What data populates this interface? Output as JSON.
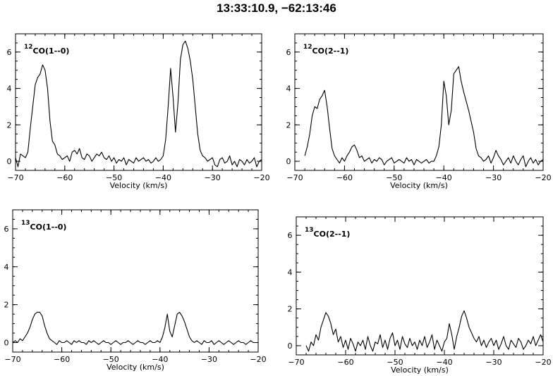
{
  "page": {
    "title": "13:33:10.9, −62:13:46"
  },
  "chart_data": [
    {
      "type": "line",
      "label_sup": "12",
      "label_main": "CO(1--0)",
      "xlabel": "Velocity (km/s)",
      "xlim": [
        -70,
        -20
      ],
      "ylim": [
        -0.5,
        7
      ],
      "xticks": [
        -70,
        -60,
        -50,
        -40,
        -30,
        -20
      ],
      "yticks": [
        0,
        2,
        4,
        6
      ],
      "series": [
        {
          "x": [
            -70,
            -69.5,
            -69,
            -68.5,
            -68,
            -67.5,
            -67,
            -66.5,
            -66,
            -65.5,
            -65,
            -64.5,
            -64,
            -63.5,
            -63,
            -62.5,
            -62,
            -61.5,
            -61,
            -60.5,
            -60,
            -59.5,
            -59,
            -58.5,
            -58,
            -57.5,
            -57,
            -56.5,
            -56,
            -55.5,
            -55,
            -54.5,
            -54,
            -53.5,
            -53,
            -52.5,
            -52,
            -51.5,
            -51,
            -50.5,
            -50,
            -49.5,
            -49,
            -48.5,
            -48,
            -47.5,
            -47,
            -46.5,
            -46,
            -45.5,
            -45,
            -44.5,
            -44,
            -43.5,
            -43,
            -42.5,
            -42,
            -41.5,
            -41,
            -40.5,
            -40,
            -39.5,
            -39,
            -38.5,
            -38,
            -37.5,
            -37,
            -36.5,
            -36,
            -35.5,
            -35,
            -34.5,
            -34,
            -33.5,
            -33,
            -32.5,
            -32,
            -31.5,
            -31,
            -30.5,
            -30,
            -29.5,
            -29,
            -28.5,
            -28,
            -27.5,
            -27,
            -26.5,
            -26,
            -25.5,
            -25,
            -24.5,
            -24,
            -23.5,
            -23,
            -22.5,
            -22,
            -21.5,
            -21,
            -20.5,
            -20
          ],
          "y": [
            0.2,
            -0.3,
            0.4,
            0.3,
            0.2,
            0.5,
            1.8,
            3.0,
            4.2,
            4.6,
            4.8,
            5.3,
            5.0,
            4.0,
            2.2,
            1.1,
            0.9,
            0.4,
            0.3,
            0.1,
            0.2,
            0.3,
            0.0,
            0.5,
            0.6,
            0.4,
            0.7,
            0.2,
            0.1,
            0.4,
            0.3,
            0.0,
            0.2,
            0.4,
            0.3,
            0.5,
            0.2,
            0.1,
            0.3,
            0.0,
            0.2,
            -0.1,
            0.1,
            0.0,
            0.2,
            -0.2,
            0.1,
            0.0,
            -0.1,
            0.2,
            0.0,
            0.1,
            0.2,
            0.0,
            0.1,
            -0.1,
            0.0,
            0.2,
            0.0,
            0.1,
            0.3,
            1.2,
            3.0,
            5.1,
            3.5,
            1.6,
            3.2,
            5.6,
            6.4,
            6.6,
            6.2,
            5.5,
            4.5,
            3.0,
            1.5,
            0.6,
            0.3,
            0.2,
            0.0,
            0.1,
            0.2,
            -0.2,
            -0.3,
            0.1,
            0.2,
            -0.1,
            0.0,
            0.3,
            -0.2,
            0.0,
            -0.3,
            0.1,
            0.0,
            -0.2,
            0.1,
            -0.1,
            0.0,
            0.2,
            -0.3,
            0.0,
            0.1
          ]
        }
      ]
    },
    {
      "type": "line",
      "label_sup": "12",
      "label_main": "CO(2--1)",
      "xlabel": "Velocity (km/s)",
      "xlim": [
        -70,
        -20
      ],
      "ylim": [
        -0.5,
        7
      ],
      "xticks": [
        -70,
        -60,
        -50,
        -40,
        -30,
        -20
      ],
      "yticks": [
        0,
        2,
        4,
        6
      ],
      "series": [
        {
          "x": [
            -68,
            -67.5,
            -67,
            -66.5,
            -66,
            -65.5,
            -65,
            -64.5,
            -64,
            -63.5,
            -63,
            -62.5,
            -62,
            -61.5,
            -61,
            -60.5,
            -60,
            -59.5,
            -59,
            -58.5,
            -58,
            -57.5,
            -57,
            -56.5,
            -56,
            -55.5,
            -55,
            -54.5,
            -54,
            -53.5,
            -53,
            -52.5,
            -52,
            -51.5,
            -51,
            -50.5,
            -50,
            -49.5,
            -49,
            -48.5,
            -48,
            -47.5,
            -47,
            -46.5,
            -46,
            -45.5,
            -45,
            -44.5,
            -44,
            -43.5,
            -43,
            -42.5,
            -42,
            -41.5,
            -41,
            -40.5,
            -40,
            -39.5,
            -39,
            -38.5,
            -38,
            -37.5,
            -37,
            -36.5,
            -36,
            -35.5,
            -35,
            -34.5,
            -34,
            -33.5,
            -33,
            -32.5,
            -32,
            -31.5,
            -31,
            -30.5,
            -30,
            -29.5,
            -29,
            -28.5,
            -28,
            -27.5,
            -27,
            -26.5,
            -26,
            -25.5,
            -25,
            -24.5,
            -24,
            -23.5,
            -23,
            -22.5,
            -22,
            -21.5,
            -21,
            -20.5,
            -20
          ],
          "y": [
            0.3,
            0.8,
            1.5,
            2.5,
            3.0,
            2.9,
            3.4,
            3.6,
            3.9,
            3.0,
            1.8,
            0.7,
            0.3,
            0.1,
            -0.1,
            0.2,
            0.0,
            0.3,
            0.5,
            0.8,
            0.9,
            0.6,
            0.2,
            0.3,
            0.0,
            0.1,
            0.2,
            -0.1,
            0.1,
            0.0,
            0.2,
            0.1,
            -0.2,
            0.0,
            0.1,
            0.2,
            -0.1,
            0.0,
            0.1,
            0.0,
            -0.1,
            0.2,
            0.0,
            0.1,
            -0.2,
            0.1,
            0.0,
            -0.1,
            0.0,
            0.1,
            -0.1,
            0.0,
            0.0,
            0.3,
            0.8,
            2.0,
            4.4,
            3.6,
            2.0,
            2.8,
            4.8,
            5.0,
            5.2,
            4.4,
            3.8,
            3.3,
            2.8,
            2.2,
            1.6,
            0.7,
            0.3,
            0.2,
            0.0,
            0.1,
            0.3,
            -0.1,
            0.2,
            0.6,
            0.3,
            0.1,
            -0.2,
            0.0,
            0.2,
            -0.1,
            0.3,
            0.0,
            -0.2,
            0.1,
            0.3,
            -0.3,
            0.0,
            0.2,
            -0.1,
            0.1,
            -0.2,
            0.0,
            0.1
          ]
        }
      ]
    },
    {
      "type": "line",
      "label_sup": "13",
      "label_main": "CO(1--0)",
      "xlabel": "Velocity (km/s)",
      "xlim": [
        -70,
        -20
      ],
      "ylim": [
        -0.5,
        7
      ],
      "xticks": [
        -70,
        -60,
        -50,
        -40,
        -30,
        -20
      ],
      "yticks": [
        0,
        2,
        4,
        6
      ],
      "series": [
        {
          "x": [
            -70,
            -69.5,
            -69,
            -68.5,
            -68,
            -67.5,
            -67,
            -66.5,
            -66,
            -65.5,
            -65,
            -64.5,
            -64,
            -63.5,
            -63,
            -62.5,
            -62,
            -61.5,
            -61,
            -60.5,
            -60,
            -59.5,
            -59,
            -58.5,
            -58,
            -57.5,
            -57,
            -56.5,
            -56,
            -55.5,
            -55,
            -54.5,
            -54,
            -53.5,
            -53,
            -52.5,
            -52,
            -51.5,
            -51,
            -50.5,
            -50,
            -49.5,
            -49,
            -48.5,
            -48,
            -47.5,
            -47,
            -46.5,
            -46,
            -45.5,
            -45,
            -44.5,
            -44,
            -43.5,
            -43,
            -42.5,
            -42,
            -41.5,
            -41,
            -40.5,
            -40,
            -39.5,
            -39,
            -38.5,
            -38,
            -37.5,
            -37,
            -36.5,
            -36,
            -35.5,
            -35,
            -34.5,
            -34,
            -33.5,
            -33,
            -32.5,
            -32,
            -31.5,
            -31,
            -30.5,
            -30,
            -29.5,
            -29,
            -28.5,
            -28,
            -27.5,
            -27,
            -26.5,
            -26,
            -25.5,
            -25,
            -24.5,
            -24,
            -23.5,
            -23,
            -22.5,
            -22,
            -21.5,
            -21,
            -20.5,
            -20
          ],
          "y": [
            0.0,
            0.1,
            0.0,
            0.2,
            0.1,
            0.3,
            0.5,
            0.8,
            1.2,
            1.5,
            1.6,
            1.6,
            1.4,
            0.9,
            0.5,
            0.2,
            0.1,
            0.0,
            -0.1,
            0.1,
            0.0,
            0.0,
            0.1,
            0.0,
            -0.1,
            0.1,
            0.0,
            0.1,
            0.0,
            0.0,
            -0.1,
            0.1,
            0.0,
            0.1,
            0.0,
            -0.1,
            0.0,
            0.1,
            0.0,
            0.0,
            -0.1,
            0.0,
            0.1,
            0.0,
            -0.1,
            0.0,
            0.0,
            0.1,
            0.0,
            -0.1,
            0.0,
            0.1,
            0.0,
            0.0,
            -0.1,
            0.0,
            0.1,
            0.0,
            0.0,
            0.1,
            0.0,
            0.3,
            0.8,
            1.5,
            0.6,
            0.3,
            0.9,
            1.5,
            1.6,
            1.4,
            1.1,
            0.7,
            0.3,
            0.1,
            0.0,
            0.1,
            0.0,
            -0.1,
            0.1,
            0.0,
            0.0,
            0.1,
            -0.1,
            0.0,
            0.1,
            0.0,
            -0.1,
            0.0,
            0.1,
            0.0,
            -0.1,
            0.0,
            0.1,
            0.0,
            0.0,
            -0.1,
            0.0,
            0.1,
            0.0,
            0.0,
            0.0
          ]
        }
      ]
    },
    {
      "type": "line",
      "label_sup": "13",
      "label_main": "CO(2--1)",
      "xlabel": "Velocity (km/s)",
      "xlim": [
        -70,
        -20
      ],
      "ylim": [
        -0.5,
        7
      ],
      "xticks": [
        -70,
        -60,
        -50,
        -40,
        -30,
        -20
      ],
      "yticks": [
        0,
        2,
        4,
        6
      ],
      "series": [
        {
          "x": [
            -68,
            -67.5,
            -67,
            -66.5,
            -66,
            -65.5,
            -65,
            -64.5,
            -64,
            -63.5,
            -63,
            -62.5,
            -62,
            -61.5,
            -61,
            -60.5,
            -60,
            -59.5,
            -59,
            -58.5,
            -58,
            -57.5,
            -57,
            -56.5,
            -56,
            -55.5,
            -55,
            -54.5,
            -54,
            -53.5,
            -53,
            -52.5,
            -52,
            -51.5,
            -51,
            -50.5,
            -50,
            -49.5,
            -49,
            -48.5,
            -48,
            -47.5,
            -47,
            -46.5,
            -46,
            -45.5,
            -45,
            -44.5,
            -44,
            -43.5,
            -43,
            -42.5,
            -42,
            -41.5,
            -41,
            -40.5,
            -40,
            -39.5,
            -39,
            -38.5,
            -38,
            -37.5,
            -37,
            -36.5,
            -36,
            -35.5,
            -35,
            -34.5,
            -34,
            -33.5,
            -33,
            -32.5,
            -32,
            -31.5,
            -31,
            -30.5,
            -30,
            -29.5,
            -29,
            -28.5,
            -28,
            -27.5,
            -27,
            -26.5,
            -26,
            -25.5,
            -25,
            -24.5,
            -24,
            -23.5,
            -23,
            -22.5,
            -22,
            -21.5,
            -21,
            -20.5,
            -20
          ],
          "y": [
            0.0,
            -0.3,
            0.2,
            0.0,
            0.6,
            0.3,
            1.0,
            1.4,
            1.8,
            1.6,
            1.2,
            0.6,
            0.9,
            0.2,
            0.5,
            -0.1,
            0.3,
            -0.2,
            0.4,
            0.1,
            -0.3,
            0.2,
            0.0,
            0.3,
            -0.2,
            0.5,
            0.0,
            -0.3,
            0.2,
            0.1,
            0.6,
            -0.1,
            0.3,
            -0.2,
            0.4,
            0.7,
            0.0,
            0.3,
            -0.2,
            0.5,
            0.1,
            -0.1,
            0.4,
            0.0,
            0.2,
            -0.2,
            0.3,
            0.0,
            0.5,
            -0.1,
            0.2,
            0.6,
            -0.2,
            0.3,
            0.0,
            -0.3,
            0.2,
            0.4,
            1.2,
            0.6,
            -0.2,
            0.5,
            1.0,
            1.6,
            1.9,
            1.5,
            1.0,
            0.7,
            0.4,
            0.2,
            0.5,
            0.0,
            0.3,
            -0.1,
            0.2,
            0.4,
            0.0,
            0.3,
            -0.2,
            0.1,
            0.5,
            0.0,
            -0.2,
            0.3,
            0.1,
            -0.1,
            0.4,
            0.2,
            -0.2,
            0.0,
            0.3,
            0.1,
            0.5,
            0.0,
            0.3,
            0.6,
            0.2
          ]
        }
      ]
    }
  ]
}
